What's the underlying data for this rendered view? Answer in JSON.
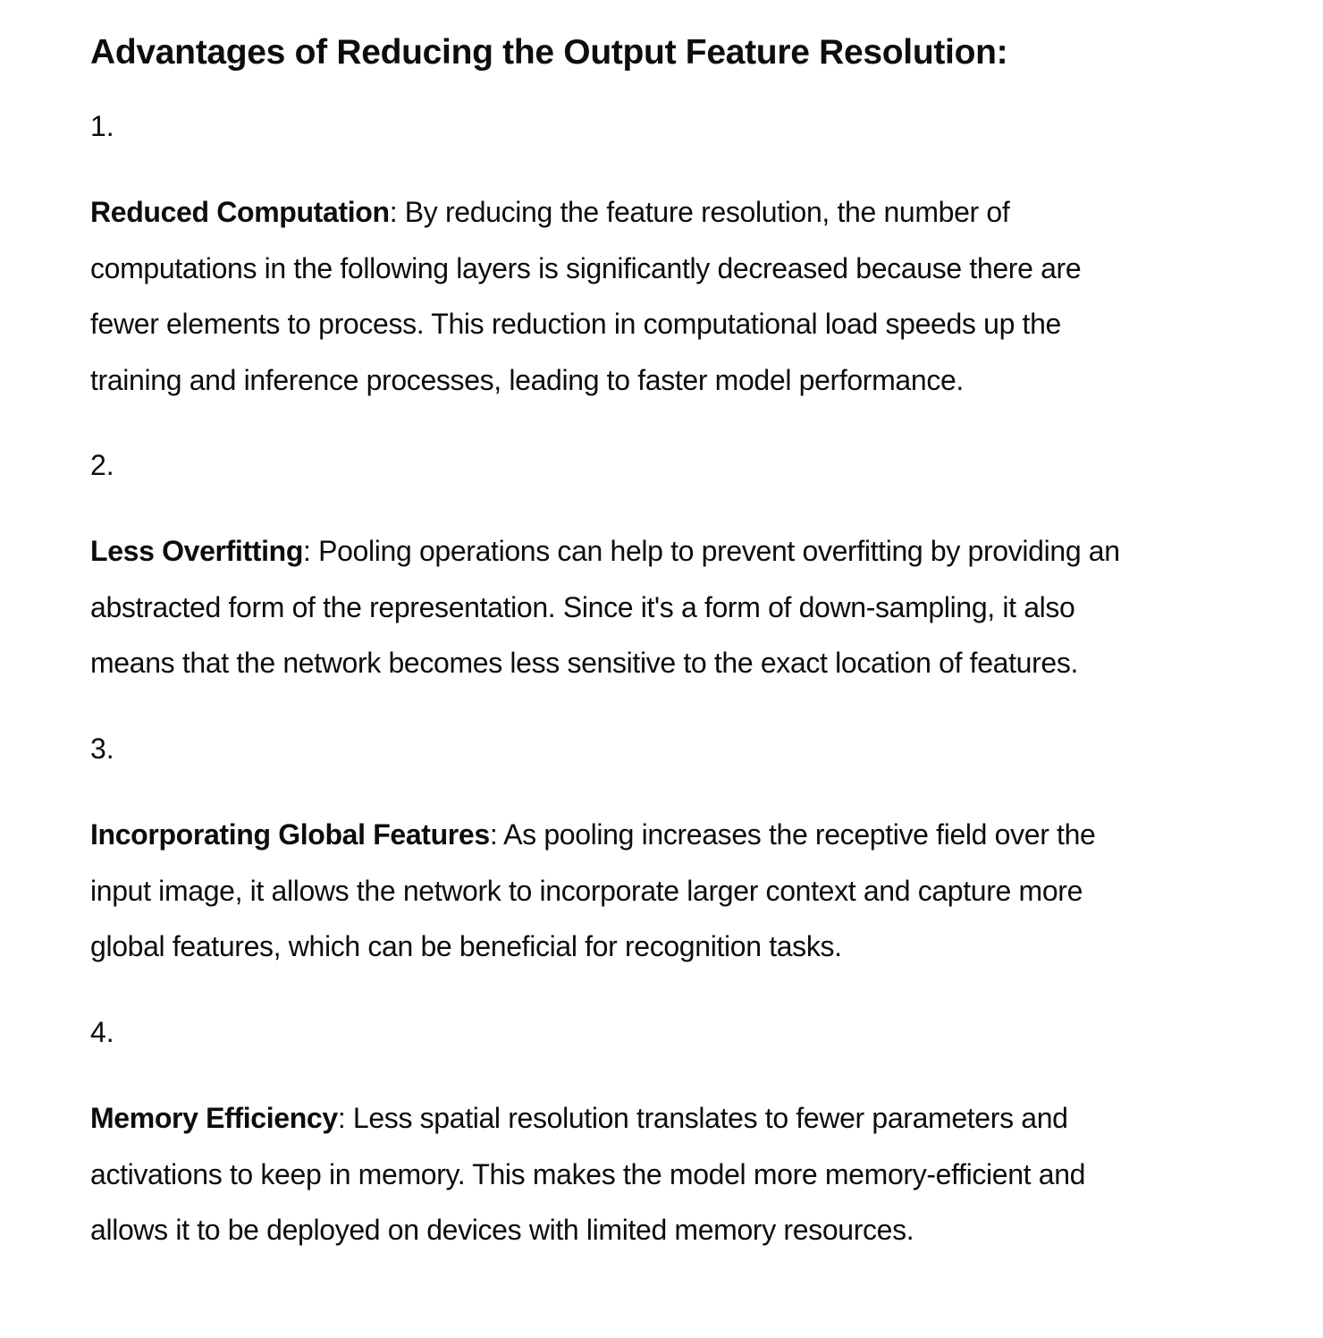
{
  "heading": "Advantages of Reducing the Output Feature Resolution:",
  "items": [
    {
      "number": "1.",
      "term": "Reduced Computation",
      "first_line_rest": ": By reducing the feature resolution, the number of",
      "lines": [
        "computations in the following layers is significantly decreased because there are",
        "fewer elements to process. This reduction in computational load speeds up the",
        "training and inference processes, leading to faster model performance."
      ]
    },
    {
      "number": "2.",
      "term": "Less Overfitting",
      "first_line_rest": ": Pooling operations can help to prevent overfitting by providing an",
      "lines": [
        "abstracted form of the representation. Since it's a form of down-sampling, it also",
        "means that the network becomes less sensitive to the exact location of features."
      ]
    },
    {
      "number": "3.",
      "term": "Incorporating Global Features",
      "first_line_rest": ": As pooling increases the receptive field over the",
      "lines": [
        "input image, it allows the network to incorporate larger context and capture more",
        "global features, which can be beneficial for recognition tasks."
      ]
    },
    {
      "number": "4.",
      "term": "Memory Efficiency",
      "first_line_rest": ": Less spatial resolution translates to fewer parameters and",
      "lines": [
        "activations to keep in memory. This makes the model more memory-efficient and",
        "allows it to be deployed on devices with limited memory resources."
      ]
    }
  ]
}
